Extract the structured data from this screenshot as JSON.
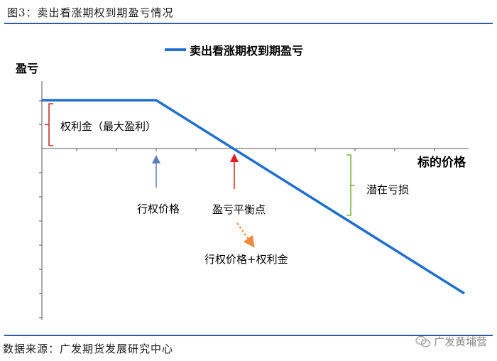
{
  "header": {
    "title": "图3：卖出看涨期权到期盈亏情况"
  },
  "legend": {
    "label": "卖出看涨期权到期盈亏"
  },
  "axes": {
    "y_label": "盈亏",
    "x_label": "标的价格"
  },
  "annotations": {
    "premium": "权利金（最大盈利）",
    "strike": "行权价格",
    "breakeven": "盈亏平衡点",
    "breakeven_formula": "行权价格+权利金",
    "potential_loss": "潜在亏损"
  },
  "footer": {
    "source": "数据来源：广发期货发展研究中心",
    "watermark": "广发黄埔营"
  },
  "colors": {
    "payoff_line": "#1f6fd0",
    "rule": "#2e5d9c",
    "bracket_premium": "#c0392b",
    "bracket_loss": "#7cb342",
    "strike_arrow": "#5b7fb5",
    "breakeven_arrow": "#e02020",
    "formula_arrow": "#f08a3c"
  }
}
